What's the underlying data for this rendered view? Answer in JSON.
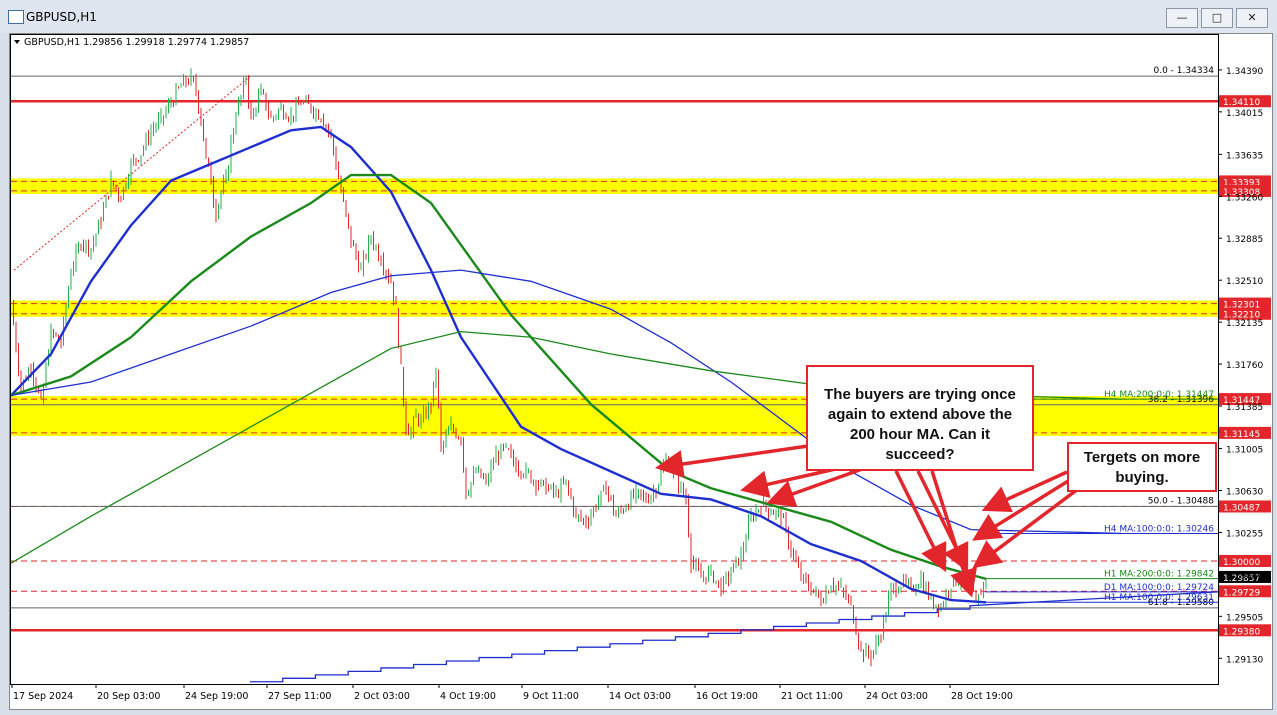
{
  "window": {
    "title": "GBPUSD,H1",
    "buttons": {
      "minimize": "—",
      "restore": "□",
      "close": "✕"
    }
  },
  "chart_data": {
    "type": "candlestick",
    "symbol_header": "GBPUSD,H1  1.29856 1.29918 1.29774 1.29857",
    "y_ticks": [
      1.3439,
      1.34015,
      1.33635,
      1.3326,
      1.32885,
      1.3251,
      1.32135,
      1.3176,
      1.31385,
      1.31005,
      1.3063,
      1.30255,
      1.2988,
      1.29505,
      1.2913
    ],
    "x_ticks": [
      "17 Sep 2024",
      "20 Sep 03:00",
      "24 Sep 19:00",
      "27 Sep 11:00",
      "2 Oct 03:00",
      "4 Oct 19:00",
      "9 Oct 11:00",
      "14 Oct 03:00",
      "16 Oct 19:00",
      "21 Oct 11:00",
      "24 Oct 03:00",
      "28 Oct 19:00"
    ],
    "ylim": [
      1.289,
      1.3455
    ],
    "zones": [
      {
        "low": 1.33308,
        "high": 1.33393,
        "color": "#ffff00"
      },
      {
        "low": 1.3221,
        "high": 1.32301,
        "color": "#ffff00"
      },
      {
        "low": 1.31145,
        "high": 1.31447,
        "color": "#ffff00"
      }
    ],
    "red_levels": [
      {
        "price": 1.3411,
        "label": "1.34110",
        "style": "solid"
      },
      {
        "price": 1.33393,
        "label": "1.33393",
        "style": "dash"
      },
      {
        "price": 1.33308,
        "label": "1.33308",
        "style": "dash"
      },
      {
        "price": 1.32301,
        "label": "1.32301",
        "style": "dash"
      },
      {
        "price": 1.3221,
        "label": "1.32210",
        "style": "dash"
      },
      {
        "price": 1.31447,
        "label": "1.31447",
        "style": "dash"
      },
      {
        "price": 1.31145,
        "label": "1.31145",
        "style": "dash"
      },
      {
        "price": 1.30487,
        "label": "1.30487",
        "style": "dash"
      },
      {
        "price": 1.3,
        "label": "1.30000",
        "style": "dash"
      },
      {
        "price": 1.29729,
        "label": "1.29729",
        "style": "dash"
      },
      {
        "price": 1.2938,
        "label": "1.29380",
        "style": "solid"
      }
    ],
    "current_price": {
      "price": 1.29857,
      "label": "1.29857"
    },
    "fib_levels": [
      {
        "price": 1.34334,
        "label": "0.0 - 1.34334"
      },
      {
        "price": 1.31396,
        "label": "38.2 - 1.31396"
      },
      {
        "price": 1.30488,
        "label": "50.0 - 1.30488"
      },
      {
        "price": 1.2958,
        "label": "61.8 - 1.29580"
      }
    ],
    "ma_labels": [
      {
        "text": "H4 MA:200:0:0: 1.31447",
        "price": 1.31447,
        "color": "#1a8a1a"
      },
      {
        "text": "H4 MA:100:0:0: 1.30246",
        "price": 1.30246,
        "color": "#1f2fcf"
      },
      {
        "text": "H1 MA:200:0:0: 1.29842",
        "price": 1.29842,
        "color": "#1a8a1a"
      },
      {
        "text": "D1 MA:100:0:0: 1.29724",
        "price": 1.29724,
        "color": "#1f2fcf"
      },
      {
        "text": "H1 MA:100:0:0: 1.29631",
        "price": 1.29631,
        "color": "#1f2fcf"
      }
    ],
    "close_path": [
      [
        0,
        1.323
      ],
      [
        10,
        1.3155
      ],
      [
        20,
        1.3175
      ],
      [
        30,
        1.314
      ],
      [
        40,
        1.3205
      ],
      [
        50,
        1.3195
      ],
      [
        60,
        1.326
      ],
      [
        70,
        1.3285
      ],
      [
        80,
        1.328
      ],
      [
        90,
        1.3305
      ],
      [
        100,
        1.334
      ],
      [
        110,
        1.3325
      ],
      [
        120,
        1.3355
      ],
      [
        130,
        1.3365
      ],
      [
        140,
        1.3385
      ],
      [
        150,
        1.3395
      ],
      [
        160,
        1.341
      ],
      [
        170,
        1.3425
      ],
      [
        180,
        1.3432
      ],
      [
        185,
        1.342
      ],
      [
        190,
        1.3395
      ],
      [
        195,
        1.336
      ],
      [
        200,
        1.334
      ],
      [
        205,
        1.331
      ],
      [
        210,
        1.333
      ],
      [
        215,
        1.334
      ],
      [
        220,
        1.3375
      ],
      [
        225,
        1.34
      ],
      [
        230,
        1.3415
      ],
      [
        235,
        1.3432
      ],
      [
        240,
        1.3395
      ],
      [
        250,
        1.342
      ],
      [
        260,
        1.3395
      ],
      [
        270,
        1.3405
      ],
      [
        280,
        1.3398
      ],
      [
        290,
        1.341
      ],
      [
        300,
        1.3405
      ],
      [
        310,
        1.3398
      ],
      [
        320,
        1.338
      ],
      [
        330,
        1.333
      ],
      [
        340,
        1.3285
      ],
      [
        350,
        1.326
      ],
      [
        360,
        1.329
      ],
      [
        370,
        1.327
      ],
      [
        380,
        1.325
      ],
      [
        385,
        1.3225
      ],
      [
        390,
        1.317
      ],
      [
        395,
        1.312
      ],
      [
        400,
        1.3115
      ],
      [
        405,
        1.313
      ],
      [
        410,
        1.3125
      ],
      [
        420,
        1.314
      ],
      [
        425,
        1.317
      ],
      [
        430,
        1.31
      ],
      [
        440,
        1.312
      ],
      [
        450,
        1.311
      ],
      [
        455,
        1.306
      ],
      [
        465,
        1.308
      ],
      [
        475,
        1.307
      ],
      [
        485,
        1.3095
      ],
      [
        495,
        1.31
      ],
      [
        505,
        1.3085
      ],
      [
        515,
        1.308
      ],
      [
        525,
        1.307
      ],
      [
        535,
        1.3065
      ],
      [
        545,
        1.306
      ],
      [
        555,
        1.307
      ],
      [
        565,
        1.304
      ],
      [
        575,
        1.3035
      ],
      [
        585,
        1.305
      ],
      [
        595,
        1.3065
      ],
      [
        605,
        1.304
      ],
      [
        615,
        1.305
      ],
      [
        625,
        1.306
      ],
      [
        635,
        1.3055
      ],
      [
        645,
        1.3065
      ],
      [
        655,
        1.309
      ],
      [
        665,
        1.3075
      ],
      [
        675,
        1.3055
      ],
      [
        680,
        1.3
      ],
      [
        690,
        1.2985
      ],
      [
        700,
        1.299
      ],
      [
        710,
        1.2975
      ],
      [
        720,
        1.299
      ],
      [
        730,
        1.3005
      ],
      [
        740,
        1.304
      ],
      [
        750,
        1.305
      ],
      [
        760,
        1.3045
      ],
      [
        770,
        1.304
      ],
      [
        780,
        1.301
      ],
      [
        790,
        1.2985
      ],
      [
        800,
        1.2975
      ],
      [
        810,
        1.2965
      ],
      [
        820,
        1.298
      ],
      [
        830,
        1.2975
      ],
      [
        840,
        1.296
      ],
      [
        850,
        1.292
      ],
      [
        860,
        1.2915
      ],
      [
        870,
        1.2935
      ],
      [
        880,
        1.2975
      ],
      [
        890,
        1.298
      ],
      [
        900,
        1.2975
      ],
      [
        910,
        1.2985
      ],
      [
        920,
        1.2965
      ],
      [
        930,
        1.296
      ],
      [
        940,
        1.298
      ],
      [
        950,
        1.2985
      ],
      [
        960,
        1.2975
      ],
      [
        965,
        1.296
      ],
      [
        975,
        1.2986
      ]
    ],
    "ma_lines": [
      {
        "name": "H1 MA 100",
        "color": "#1f2fcf",
        "width": 2.4,
        "points": [
          [
            0,
            1.3148
          ],
          [
            40,
            1.3185
          ],
          [
            80,
            1.325
          ],
          [
            120,
            1.33
          ],
          [
            160,
            1.334
          ],
          [
            200,
            1.3355
          ],
          [
            240,
            1.337
          ],
          [
            280,
            1.3385
          ],
          [
            310,
            1.3388
          ],
          [
            340,
            1.337
          ],
          [
            380,
            1.333
          ],
          [
            420,
            1.326
          ],
          [
            450,
            1.32
          ],
          [
            480,
            1.316
          ],
          [
            510,
            1.312
          ],
          [
            550,
            1.31
          ],
          [
            600,
            1.308
          ],
          [
            650,
            1.306
          ],
          [
            700,
            1.3055
          ],
          [
            750,
            1.304
          ],
          [
            800,
            1.3015
          ],
          [
            850,
            1.3
          ],
          [
            900,
            1.2975
          ],
          [
            940,
            1.2965
          ],
          [
            975,
            1.2963
          ]
        ]
      },
      {
        "name": "H1 MA 200",
        "color": "#1a8a1a",
        "width": 2.4,
        "points": [
          [
            0,
            1.3148
          ],
          [
            60,
            1.3165
          ],
          [
            120,
            1.32
          ],
          [
            180,
            1.325
          ],
          [
            240,
            1.329
          ],
          [
            300,
            1.332
          ],
          [
            340,
            1.3345
          ],
          [
            380,
            1.3345
          ],
          [
            420,
            1.332
          ],
          [
            460,
            1.327
          ],
          [
            500,
            1.322
          ],
          [
            540,
            1.318
          ],
          [
            580,
            1.314
          ],
          [
            620,
            1.311
          ],
          [
            660,
            1.308
          ],
          [
            700,
            1.3065
          ],
          [
            760,
            1.305
          ],
          [
            820,
            1.3035
          ],
          [
            880,
            1.301
          ],
          [
            930,
            1.2995
          ],
          [
            975,
            1.2984
          ]
        ]
      },
      {
        "name": "H4 MA 100",
        "color": "#1f2fcf",
        "width": 1.3,
        "points": [
          [
            0,
            1.3148
          ],
          [
            80,
            1.316
          ],
          [
            160,
            1.3185
          ],
          [
            240,
            1.321
          ],
          [
            320,
            1.324
          ],
          [
            380,
            1.3255
          ],
          [
            450,
            1.326
          ],
          [
            520,
            1.325
          ],
          [
            600,
            1.3225
          ],
          [
            660,
            1.3195
          ],
          [
            720,
            1.316
          ],
          [
            780,
            1.312
          ],
          [
            840,
            1.308
          ],
          [
            900,
            1.305
          ],
          [
            960,
            1.3028
          ],
          [
            1110,
            1.30246
          ]
        ]
      },
      {
        "name": "H4 MA 200",
        "color": "#1a8a1a",
        "width": 1.3,
        "points": [
          [
            0,
            1.2998
          ],
          [
            80,
            1.304
          ],
          [
            160,
            1.308
          ],
          [
            240,
            1.312
          ],
          [
            320,
            1.316
          ],
          [
            380,
            1.319
          ],
          [
            450,
            1.3205
          ],
          [
            520,
            1.32
          ],
          [
            600,
            1.3185
          ],
          [
            700,
            1.317
          ],
          [
            800,
            1.3158
          ],
          [
            900,
            1.315
          ],
          [
            1110,
            1.31447
          ]
        ]
      }
    ],
    "d1_ma": {
      "name": "D1 MA 100",
      "color": "#1f2fcf",
      "start": [
        240,
        1.2892
      ],
      "end": [
        960,
        1.296
      ],
      "steps": 22,
      "tail_price": 1.29724
    }
  },
  "callouts": [
    {
      "text": "The buyers are trying once again to extend above the 200 hour MA. Can it succeed?"
    },
    {
      "text": "Tergets on more buying."
    }
  ]
}
